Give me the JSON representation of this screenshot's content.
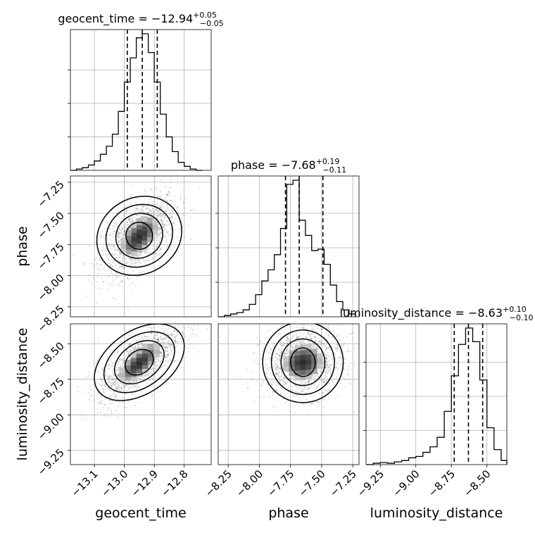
{
  "chart_data": {
    "type": "corner",
    "parameters": [
      {
        "name": "geocent_time",
        "label": "geocent_time",
        "range": [
          -13.18,
          -12.71
        ],
        "ticks": [
          "−13.1",
          "−13.0",
          "−12.9",
          "−12.8"
        ],
        "tick_values": [
          -13.1,
          -13.0,
          -12.9,
          -12.8
        ],
        "median": -12.94,
        "q_low": -12.99,
        "q_high": -12.89,
        "title_main": "geocent_time = −12.94",
        "title_sup": "+0.05",
        "title_sub": "−0.05",
        "hist": {
          "edges": [
            -13.18,
            -13.16,
            -13.14,
            -13.12,
            -13.1,
            -13.08,
            -13.06,
            -13.04,
            -13.02,
            -13.0,
            -12.98,
            -12.96,
            -12.94,
            -12.92,
            -12.9,
            -12.88,
            -12.86,
            -12.84,
            -12.82,
            -12.8,
            -12.78,
            -12.76,
            -12.74
          ],
          "counts": [
            0,
            2,
            4,
            8,
            14,
            24,
            36,
            54,
            88,
            132,
            168,
            198,
            204,
            176,
            132,
            84,
            50,
            28,
            12,
            6,
            2,
            0
          ]
        }
      },
      {
        "name": "phase",
        "label": "phase",
        "range": [
          -8.33,
          -7.2
        ],
        "ticks": [
          "−8.25",
          "−8.00",
          "−7.75",
          "−7.50",
          "−7.25"
        ],
        "tick_values": [
          -8.25,
          -8.0,
          -7.75,
          -7.5,
          -7.25
        ],
        "median": -7.68,
        "q_low": -7.79,
        "q_high": -7.49,
        "title_main": "phase = −7.68",
        "title_sup": "+0.19",
        "title_sub": "−0.11",
        "hist": {
          "edges": [
            -8.33,
            -8.28,
            -8.23,
            -8.18,
            -8.13,
            -8.08,
            -8.03,
            -7.98,
            -7.93,
            -7.88,
            -7.83,
            -7.78,
            -7.73,
            -7.68,
            -7.63,
            -7.58,
            -7.53,
            -7.48,
            -7.43,
            -7.38,
            -7.33,
            -7.28,
            -7.23
          ],
          "counts": [
            0,
            2,
            4,
            6,
            10,
            18,
            32,
            52,
            68,
            90,
            128,
            192,
            198,
            140,
            118,
            96,
            98,
            76,
            46,
            22,
            10,
            4
          ]
        }
      },
      {
        "name": "luminosity_distance",
        "label": "luminosity_distance",
        "range": [
          -9.35,
          -8.36
        ],
        "ticks": [
          "−9.25",
          "−9.00",
          "−8.75",
          "−8.50"
        ],
        "tick_values": [
          -9.25,
          -9.0,
          -8.75,
          -8.5
        ],
        "median": -8.63,
        "q_low": -8.73,
        "q_high": -8.53,
        "title_main": "luminosity_distance = −8.63",
        "title_sup": "+0.10",
        "title_sub": "−0.10",
        "hist": {
          "edges": [
            -9.35,
            -9.3,
            -9.25,
            -9.2,
            -9.15,
            -9.1,
            -9.05,
            -9.0,
            -8.95,
            -8.9,
            -8.85,
            -8.8,
            -8.75,
            -8.7,
            -8.65,
            -8.6,
            -8.55,
            -8.5,
            -8.45,
            -8.4,
            -8.36
          ],
          "counts": [
            0,
            2,
            3,
            2,
            4,
            6,
            10,
            12,
            18,
            26,
            40,
            78,
            130,
            176,
            200,
            180,
            124,
            54,
            22,
            6
          ]
        }
      }
    ],
    "pairs": [
      {
        "x": "geocent_time",
        "y": "phase",
        "center": [
          -12.95,
          -7.68
        ],
        "spread": [
          0.055,
          0.14
        ],
        "corr": 0.55
      },
      {
        "x": "geocent_time",
        "y": "luminosity_distance",
        "center": [
          -12.95,
          -8.63
        ],
        "spread": [
          0.06,
          0.12
        ],
        "corr": 0.72
      },
      {
        "x": "phase",
        "y": "luminosity_distance",
        "center": [
          -7.65,
          -8.63
        ],
        "spread": [
          0.14,
          0.11
        ],
        "corr": 0.1
      }
    ],
    "grid": true
  }
}
